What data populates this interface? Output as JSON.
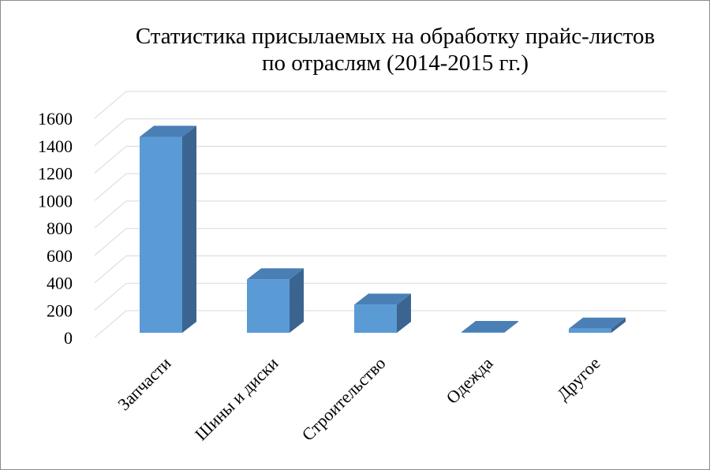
{
  "chart_data": {
    "type": "bar",
    "title_line1": "Статистика присылаемых на обработку прайс-листов",
    "title_line2": "по отраслям (2014-2015 гг.)",
    "categories": [
      "Запчасти",
      "Шины и диски",
      "Строительство",
      "Одежда",
      "Другое"
    ],
    "values": [
      1430,
      390,
      205,
      5,
      30
    ],
    "y_ticks": [
      0,
      200,
      400,
      600,
      800,
      1000,
      1200,
      1400,
      1600
    ],
    "ylim": [
      0,
      1600
    ],
    "grid": true,
    "three_d": true,
    "legend": "none",
    "colors": {
      "bar_front": "#5b9bd5",
      "bar_side": "#3b6590",
      "bar_top": "#4a7fb5",
      "grid": "#d9d9d9"
    }
  }
}
